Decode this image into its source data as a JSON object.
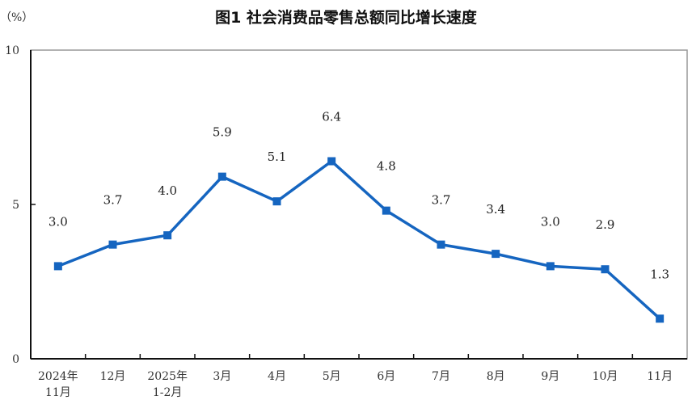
{
  "chart_data": {
    "type": "line",
    "title": "图1  社会消费品零售总额同比增长速度",
    "ylabel": "（%）",
    "xlabel": "",
    "ylim": [
      0,
      10
    ],
    "yticks": [
      "0",
      "5",
      "10"
    ],
    "categories": [
      [
        "2024年",
        "11月"
      ],
      [
        "12月"
      ],
      [
        "2025年",
        "1-2月"
      ],
      [
        "3月"
      ],
      [
        "4月"
      ],
      [
        "5月"
      ],
      [
        "6月"
      ],
      [
        "7月"
      ],
      [
        "8月"
      ],
      [
        "9月"
      ],
      [
        "10月"
      ],
      [
        "11月"
      ]
    ],
    "series": [
      {
        "name": "同比增长速度",
        "values": [
          3.0,
          3.7,
          4.0,
          5.9,
          5.1,
          6.4,
          4.8,
          3.7,
          3.4,
          3.0,
          2.9,
          1.3
        ],
        "labels": [
          "3.0",
          "3.7",
          "4.0",
          "5.9",
          "5.1",
          "6.4",
          "4.8",
          "3.7",
          "3.4",
          "3.0",
          "2.9",
          "1.3"
        ],
        "color": "#1565c0"
      }
    ],
    "grid": false,
    "legend": "none"
  }
}
